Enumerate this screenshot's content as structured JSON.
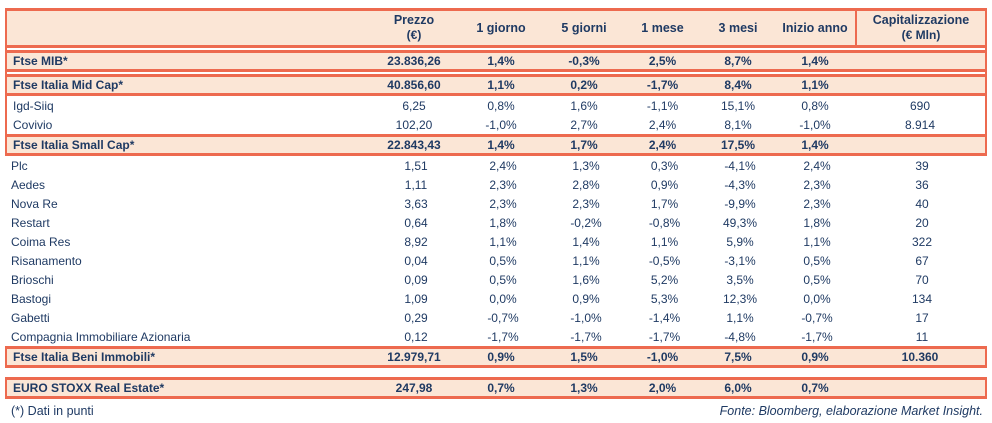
{
  "colors": {
    "accent": "#ed6a4f",
    "band_background": "#fbe6d6",
    "text": "#1f3a63",
    "page_background": "#ffffff"
  },
  "table": {
    "header": {
      "name_label": "",
      "columns": [
        {
          "label": "Prezzo",
          "sub": "(€)"
        },
        {
          "label": "1 giorno",
          "sub": ""
        },
        {
          "label": "5 giorni",
          "sub": ""
        },
        {
          "label": "1 mese",
          "sub": ""
        },
        {
          "label": "3 mesi",
          "sub": ""
        },
        {
          "label": "Inizio anno",
          "sub": ""
        },
        {
          "label": "Capitalizzazione",
          "sub": "(€ Mln)"
        }
      ]
    },
    "sections": [
      {
        "framed": true,
        "with_header": true,
        "rows": [
          {
            "name": "Ftse MIB*",
            "highlight": true,
            "values": [
              "23.836,26",
              "1,4%",
              "-0,3%",
              "2,5%",
              "8,7%",
              "1,4%",
              ""
            ]
          },
          {
            "name": "Ftse Italia Mid Cap*",
            "highlight": true,
            "values": [
              "40.856,60",
              "1,1%",
              "0,2%",
              "-1,7%",
              "8,4%",
              "1,1%",
              ""
            ]
          },
          {
            "name": "Igd-Siiq",
            "highlight": false,
            "values": [
              "6,25",
              "0,8%",
              "1,6%",
              "-1,1%",
              "15,1%",
              "0,8%",
              "690"
            ]
          },
          {
            "name": "Covivio",
            "highlight": false,
            "values": [
              "102,20",
              "-1,0%",
              "2,7%",
              "2,4%",
              "8,1%",
              "-1,0%",
              "8.914"
            ]
          },
          {
            "name": "Ftse Italia Small Cap*",
            "highlight": true,
            "values": [
              "22.843,43",
              "1,4%",
              "1,7%",
              "2,4%",
              "17,5%",
              "1,4%",
              ""
            ]
          }
        ]
      },
      {
        "framed": false,
        "rows": [
          {
            "name": "Plc",
            "highlight": false,
            "values": [
              "1,51",
              "2,4%",
              "1,3%",
              "0,3%",
              "-4,1%",
              "2,4%",
              "39"
            ]
          },
          {
            "name": "Aedes",
            "highlight": false,
            "values": [
              "1,11",
              "2,3%",
              "2,8%",
              "0,9%",
              "-4,3%",
              "2,3%",
              "36"
            ]
          },
          {
            "name": "Nova Re",
            "highlight": false,
            "values": [
              "3,63",
              "2,3%",
              "2,3%",
              "1,7%",
              "-9,9%",
              "2,3%",
              "40"
            ]
          },
          {
            "name": "Restart",
            "highlight": false,
            "values": [
              "0,64",
              "1,8%",
              "-0,2%",
              "-0,8%",
              "49,3%",
              "1,8%",
              "20"
            ]
          },
          {
            "name": "Coima Res",
            "highlight": false,
            "values": [
              "8,92",
              "1,1%",
              "1,4%",
              "1,1%",
              "5,9%",
              "1,1%",
              "322"
            ]
          },
          {
            "name": "Risanamento",
            "highlight": false,
            "values": [
              "0,04",
              "0,5%",
              "1,1%",
              "-0,5%",
              "-3,1%",
              "0,5%",
              "67"
            ]
          },
          {
            "name": "Brioschi",
            "highlight": false,
            "values": [
              "0,09",
              "0,5%",
              "1,6%",
              "5,2%",
              "3,5%",
              "0,5%",
              "70"
            ]
          },
          {
            "name": "Bastogi",
            "highlight": false,
            "values": [
              "1,09",
              "0,0%",
              "0,9%",
              "5,3%",
              "12,3%",
              "0,0%",
              "134"
            ]
          },
          {
            "name": "Gabetti",
            "highlight": false,
            "values": [
              "0,29",
              "-0,7%",
              "-1,0%",
              "-1,4%",
              "1,1%",
              "-0,7%",
              "17"
            ]
          },
          {
            "name": "Compagnia Immobiliare Azionaria",
            "highlight": false,
            "values": [
              "0,12",
              "-1,7%",
              "-1,7%",
              "-1,7%",
              "-4,8%",
              "-1,7%",
              "11"
            ]
          }
        ]
      },
      {
        "framed": true,
        "rows": [
          {
            "name": "Ftse Italia Beni Immobili*",
            "highlight": true,
            "values": [
              "12.979,71",
              "0,9%",
              "1,5%",
              "-1,0%",
              "7,5%",
              "0,9%",
              "10.360"
            ]
          }
        ]
      },
      {
        "framed": true,
        "gap_before": true,
        "rows": [
          {
            "name": "EURO STOXX Real Estate*",
            "highlight": true,
            "values": [
              "247,98",
              "0,7%",
              "1,3%",
              "2,0%",
              "6,0%",
              "0,7%",
              ""
            ]
          }
        ]
      }
    ]
  },
  "footer": {
    "note": "(*) Dati in punti",
    "source": "Fonte: Bloomberg, elaborazione Market Insight."
  }
}
